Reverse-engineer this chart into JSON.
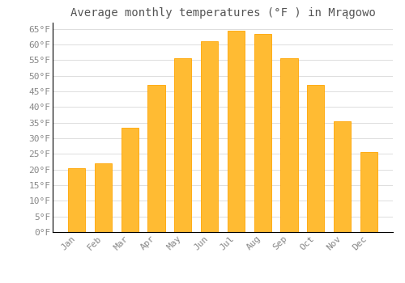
{
  "title": "Average monthly temperatures (°F ) in Mrągowo",
  "months": [
    "Jan",
    "Feb",
    "Mar",
    "Apr",
    "May",
    "Jun",
    "Jul",
    "Aug",
    "Sep",
    "Oct",
    "Nov",
    "Dec"
  ],
  "values": [
    20.5,
    22.0,
    33.5,
    47.0,
    55.5,
    61.0,
    64.5,
    63.5,
    55.5,
    47.0,
    35.5,
    25.5
  ],
  "bar_color": "#FFBB33",
  "bar_edge_color": "#FFA500",
  "background_color": "#FFFFFF",
  "grid_color": "#DDDDDD",
  "yticks": [
    0,
    5,
    10,
    15,
    20,
    25,
    30,
    35,
    40,
    45,
    50,
    55,
    60,
    65
  ],
  "ylim": [
    0,
    67
  ],
  "title_fontsize": 10,
  "tick_fontsize": 8,
  "tick_color": "#888888",
  "title_color": "#555555",
  "font_family": "monospace",
  "bar_width": 0.65
}
